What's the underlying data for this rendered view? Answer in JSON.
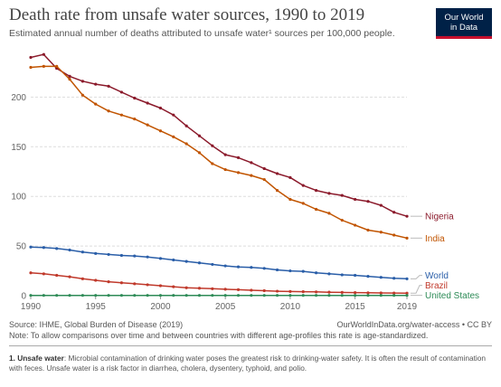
{
  "header": {
    "title": "Death rate from unsafe water sources, 1990 to 2019",
    "subtitle": "Estimated annual number of deaths attributed to unsafe water¹ sources per 100,000 people.",
    "logo_line1": "Our World",
    "logo_line2": "in Data"
  },
  "footer": {
    "source": "Source: IHME, Global Burden of Disease (2019)",
    "url": "OurWorldInData.org/water-access • CC BY",
    "note": "Note: To allow comparisons over time and between countries with different age-profiles this rate is age-standardized.",
    "footnote_label": "1. Unsafe water",
    "footnote_text": ": Microbial contamination of drinking water poses the greatest risk to drinking-water safety. It is often the result of contamination with feces. Unsafe water is a risk factor in diarrhea, cholera, dysentery, typhoid, and polio."
  },
  "chart_data": {
    "type": "line",
    "x": [
      1990,
      1991,
      1992,
      1993,
      1994,
      1995,
      1996,
      1997,
      1998,
      1999,
      2000,
      2001,
      2002,
      2003,
      2004,
      2005,
      2006,
      2007,
      2008,
      2009,
      2010,
      2011,
      2012,
      2013,
      2014,
      2015,
      2016,
      2017,
      2018,
      2019
    ],
    "xticks": [
      1990,
      1995,
      2000,
      2005,
      2010,
      2015,
      2019
    ],
    "xtick_labels": [
      "1990",
      "1995",
      "2000",
      "2005",
      "2010",
      "2015",
      "2019"
    ],
    "yticks": [
      0,
      50,
      100,
      150,
      200
    ],
    "ytick_labels": [
      "0",
      "50",
      "100",
      "150",
      "200"
    ],
    "ylim": [
      0,
      245
    ],
    "grid": "horizontal dashed",
    "legend": "right, labels at line ends",
    "series": [
      {
        "name": "Nigeria",
        "color": "#8b1a2b",
        "values": [
          240,
          243,
          229,
          221,
          216,
          213,
          211,
          205,
          199,
          194,
          189,
          182,
          171,
          161,
          151,
          142,
          139,
          134,
          128,
          123,
          119,
          111,
          106,
          103,
          101,
          97,
          95,
          91,
          84,
          80
        ]
      },
      {
        "name": "India",
        "color": "#c15400",
        "values": [
          230,
          231,
          231,
          218,
          202,
          193,
          186,
          182,
          178,
          172,
          166,
          160,
          153,
          144,
          133,
          127,
          124,
          121,
          117,
          106,
          97,
          93,
          87,
          83,
          76,
          71,
          66,
          64,
          61,
          58
        ]
      },
      {
        "name": "World",
        "color": "#2a5ea8",
        "values": [
          49,
          48.5,
          47.5,
          46,
          44,
          42.5,
          41.5,
          40.5,
          40,
          39,
          37.5,
          36,
          34.5,
          33,
          31.5,
          30,
          29,
          28.5,
          27.5,
          26,
          25,
          24.5,
          23,
          22,
          21,
          20.5,
          19.5,
          18.5,
          17.5,
          17
        ]
      },
      {
        "name": "Brazil",
        "color": "#c0392b",
        "values": [
          23,
          22,
          20.5,
          19,
          17,
          15.5,
          14,
          13,
          12,
          11,
          10,
          9,
          8,
          7.5,
          7,
          6.5,
          6,
          5.5,
          5,
          4.5,
          4.2,
          4,
          3.8,
          3.5,
          3.3,
          3.1,
          2.9,
          2.7,
          2.6,
          2.5
        ]
      },
      {
        "name": "United States",
        "color": "#2e8b57",
        "values": [
          0.3,
          0.3,
          0.3,
          0.3,
          0.3,
          0.3,
          0.3,
          0.3,
          0.3,
          0.3,
          0.3,
          0.3,
          0.3,
          0.3,
          0.3,
          0.3,
          0.3,
          0.3,
          0.3,
          0.3,
          0.3,
          0.3,
          0.3,
          0.3,
          0.3,
          0.3,
          0.3,
          0.3,
          0.3,
          0.3
        ]
      }
    ]
  }
}
